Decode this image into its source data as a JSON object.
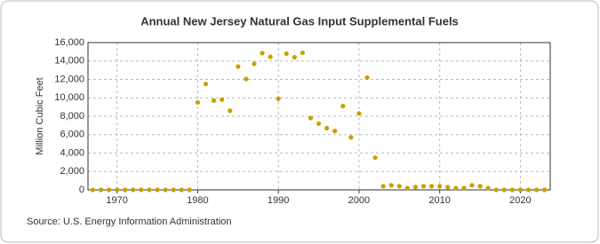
{
  "chart_data": {
    "type": "scatter",
    "title": "Annual New Jersey Natural Gas Input Supplemental Fuels",
    "y_label": "Million Cubic Feet",
    "source": "Source: U.S. Energy Information Administration",
    "color": "#c8a000",
    "grid": true,
    "x": [
      1967,
      1968,
      1969,
      1970,
      1971,
      1972,
      1973,
      1974,
      1975,
      1976,
      1977,
      1978,
      1979,
      1980,
      1981,
      1982,
      1983,
      1984,
      1985,
      1986,
      1987,
      1988,
      1989,
      1990,
      1991,
      1992,
      1993,
      1994,
      1995,
      1996,
      1997,
      1998,
      1999,
      2000,
      2001,
      2002,
      2003,
      2004,
      2005,
      2006,
      2007,
      2008,
      2009,
      2010,
      2011,
      2012,
      2013,
      2014,
      2015,
      2016,
      2017,
      2018,
      2019,
      2020,
      2021,
      2022,
      2023
    ],
    "values": [
      0,
      0,
      0,
      0,
      0,
      0,
      0,
      0,
      0,
      0,
      0,
      0,
      0,
      9500,
      11500,
      9700,
      9800,
      8600,
      13400,
      12050,
      13700,
      14850,
      14450,
      9900,
      14800,
      14400,
      14900,
      7800,
      7200,
      6700,
      6400,
      9100,
      5700,
      8300,
      12200,
      3500,
      400,
      500,
      400,
      200,
      300,
      400,
      400,
      400,
      300,
      200,
      200,
      500,
      400,
      200,
      0,
      0,
      0,
      0,
      0,
      0,
      0
    ],
    "xlim": [
      1966.4,
      2023.7
    ],
    "xticks": [
      1970,
      1980,
      1990,
      2000,
      2010,
      2020
    ],
    "ylim": [
      0,
      16000
    ],
    "yticks": [
      0,
      {
        "value": 2000,
        "label": "2,000"
      },
      {
        "value": 4000,
        "label": "4,000"
      },
      {
        "value": 6000,
        "label": "6,000"
      },
      {
        "value": 8000,
        "label": "8,000"
      },
      {
        "value": 10000,
        "label": "10,000"
      },
      {
        "value": 12000,
        "label": "12,000"
      },
      {
        "value": 14000,
        "label": "14,000"
      },
      {
        "value": 16000,
        "label": "16,000"
      }
    ]
  }
}
